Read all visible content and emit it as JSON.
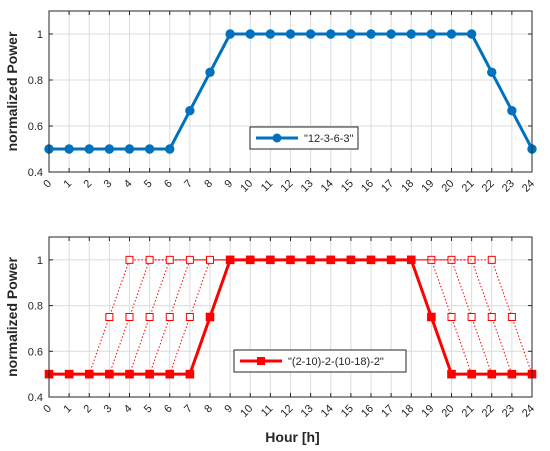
{
  "chart_data": [
    {
      "type": "line",
      "x": [
        0,
        1,
        2,
        3,
        4,
        5,
        6,
        7,
        8,
        9,
        10,
        11,
        12,
        13,
        14,
        15,
        16,
        17,
        18,
        19,
        20,
        21,
        22,
        23,
        24
      ],
      "xticks": [
        "0",
        "1",
        "2",
        "3",
        "4",
        "5",
        "6",
        "7",
        "8",
        "9",
        "10",
        "11",
        "12",
        "13",
        "14",
        "15",
        "16",
        "17",
        "18",
        "19",
        "20",
        "21",
        "22",
        "23",
        "24"
      ],
      "xlim": [
        0,
        24
      ],
      "ylim": [
        0.4,
        1.1
      ],
      "yticks": [
        "0.4",
        "0.6",
        "0.8",
        "1"
      ],
      "ylabel": "normalized Power",
      "xlabel": "",
      "grid": true,
      "legend_placement": "center-right",
      "series": [
        {
          "name": "\"12-3-6-3\"",
          "color": "#0072BD",
          "marker": "circle",
          "values": [
            0.5,
            0.5,
            0.5,
            0.5,
            0.5,
            0.5,
            0.5,
            0.6667,
            0.8333,
            1,
            1,
            1,
            1,
            1,
            1,
            1,
            1,
            1,
            1,
            1,
            1,
            1,
            0.8333,
            0.6667,
            0.5
          ]
        }
      ]
    },
    {
      "type": "line",
      "x": [
        0,
        1,
        2,
        3,
        4,
        5,
        6,
        7,
        8,
        9,
        10,
        11,
        12,
        13,
        14,
        15,
        16,
        17,
        18,
        19,
        20,
        21,
        22,
        23,
        24
      ],
      "xticks": [
        "0",
        "1",
        "2",
        "3",
        "4",
        "5",
        "6",
        "7",
        "8",
        "9",
        "10",
        "11",
        "12",
        "13",
        "14",
        "15",
        "16",
        "17",
        "18",
        "19",
        "20",
        "21",
        "22",
        "23",
        "24"
      ],
      "xlim": [
        0,
        24
      ],
      "ylim": [
        0.4,
        1.1
      ],
      "yticks": [
        "0.4",
        "0.6",
        "0.8",
        "1"
      ],
      "ylabel": "normalized Power",
      "xlabel": "Hour [h]",
      "grid": true,
      "legend_placement": "bottom-right",
      "series": [
        {
          "name": "\"(2-10)-2-(10-18)-2\"",
          "color": "#FF0000",
          "marker": "square",
          "values": [
            0.5,
            0.5,
            0.5,
            0.5,
            0.5,
            0.5,
            0.5,
            0.5,
            0.75,
            1,
            1,
            1,
            1,
            1,
            1,
            1,
            1,
            1,
            1,
            0.75,
            0.5,
            0.5,
            0.5,
            0.5,
            0.5
          ]
        }
      ],
      "alternatives": {
        "color": "#FF0000",
        "marker": "open-square",
        "style": "dotted",
        "lines": [
          {
            "x": [
              2,
              3,
              4,
              18,
              19,
              20
            ],
            "y": [
              0.5,
              0.75,
              1,
              1,
              0.75,
              0.5
            ]
          },
          {
            "x": [
              3,
              4,
              5,
              19,
              20,
              21
            ],
            "y": [
              0.5,
              0.75,
              1,
              1,
              0.75,
              0.5
            ]
          },
          {
            "x": [
              4,
              5,
              6,
              20,
              21,
              22
            ],
            "y": [
              0.5,
              0.75,
              1,
              1,
              0.75,
              0.5
            ]
          },
          {
            "x": [
              5,
              6,
              7,
              21,
              22,
              23
            ],
            "y": [
              0.5,
              0.75,
              1,
              1,
              0.75,
              0.5
            ]
          },
          {
            "x": [
              6,
              7,
              8,
              22,
              23,
              24
            ],
            "y": [
              0.5,
              0.75,
              1,
              1,
              0.75,
              0.5
            ]
          }
        ]
      }
    }
  ]
}
